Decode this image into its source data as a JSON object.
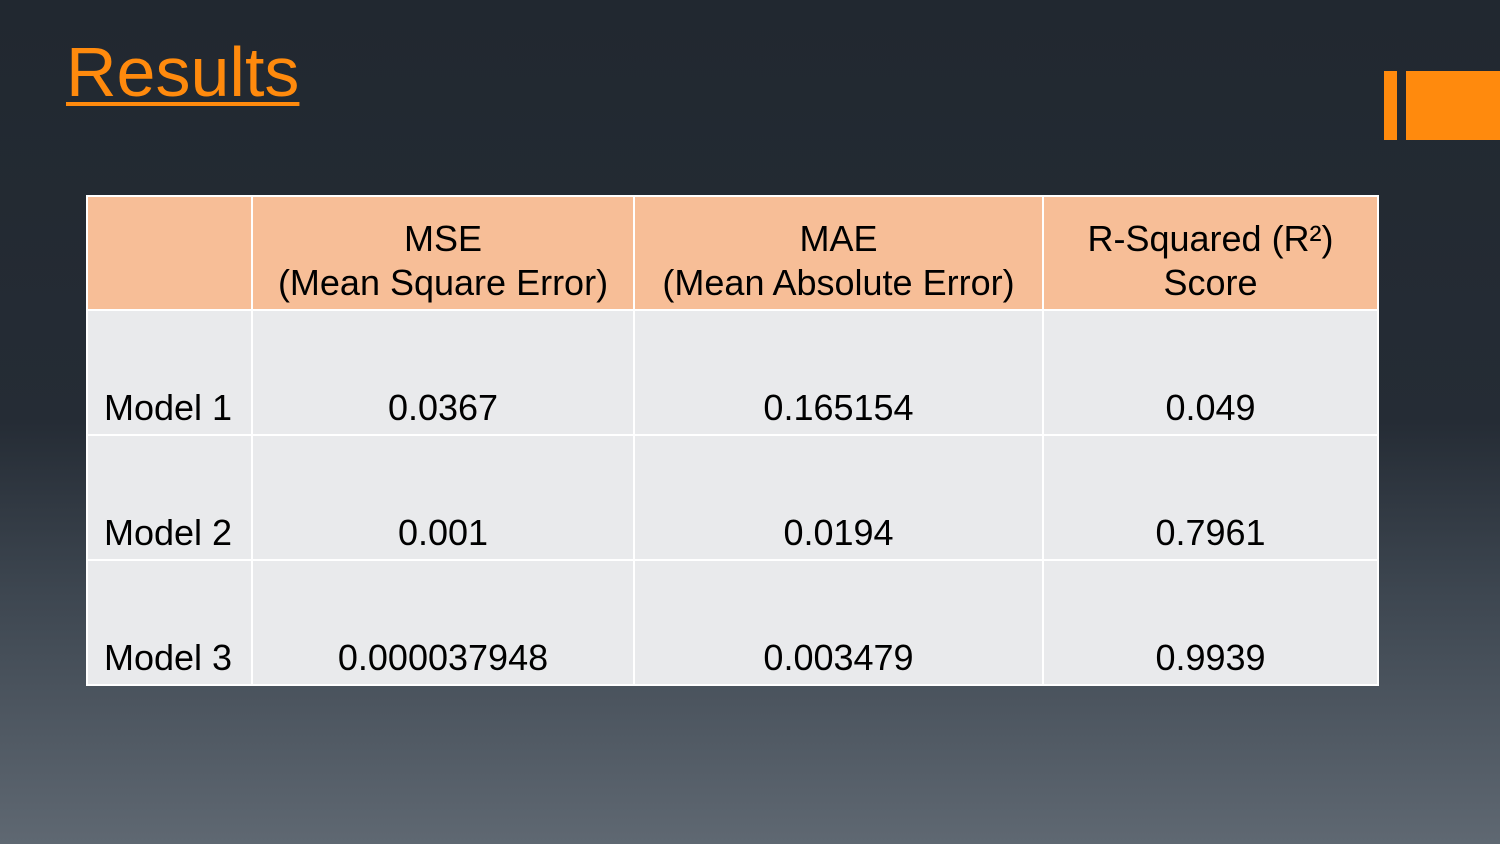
{
  "slide": {
    "title": "Results"
  },
  "table": {
    "headers": [
      {
        "line1": "",
        "line2": ""
      },
      {
        "line1": "MSE",
        "line2": "(Mean Square Error)"
      },
      {
        "line1": "MAE",
        "line2": "(Mean Absolute Error)"
      },
      {
        "line1": "R-Squared (R²)",
        "line2": "Score"
      }
    ],
    "rows": [
      {
        "label": "Model 1",
        "mse": "0.0367",
        "mae": "0.165154",
        "r2": "0.049"
      },
      {
        "label": "Model 2",
        "mse": "0.001",
        "mae": "0.0194",
        "r2": "0.7961"
      },
      {
        "label": "Model 3",
        "mse": "0.000037948",
        "mae": "0.003479",
        "r2": "0.9939"
      }
    ]
  },
  "colors": {
    "accent": "#ff8a0d",
    "header_fill": "#f7be97",
    "row_fill": "#e9eaec",
    "background_top": "#212830",
    "background_bottom": "#5f6872"
  }
}
